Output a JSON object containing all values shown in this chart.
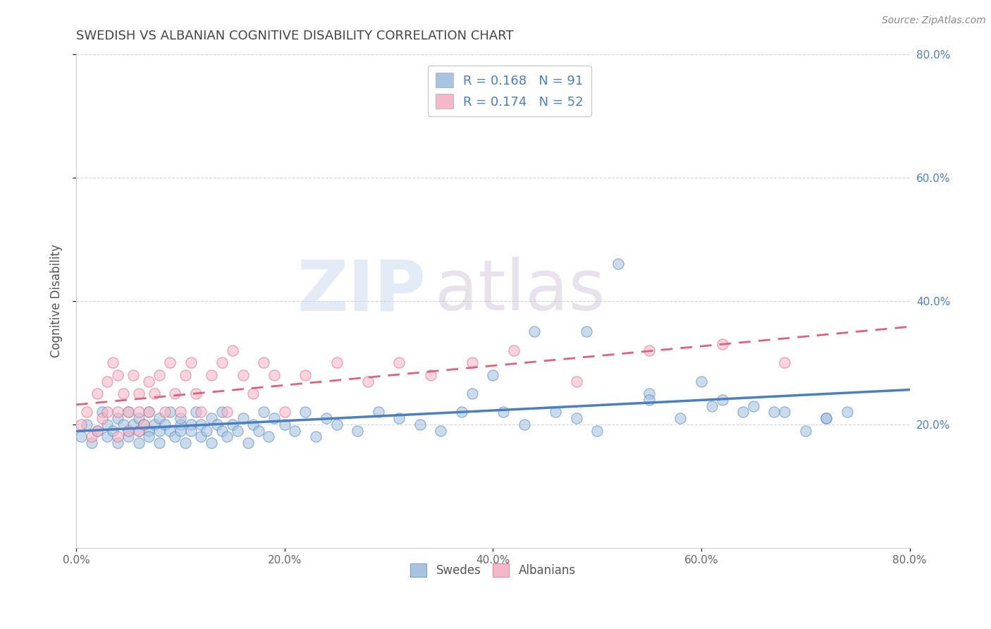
{
  "title": "SWEDISH VS ALBANIAN COGNITIVE DISABILITY CORRELATION CHART",
  "source": "Source: ZipAtlas.com",
  "ylabel": "Cognitive Disability",
  "xlim": [
    0.0,
    0.8
  ],
  "ylim": [
    0.0,
    0.8
  ],
  "xtick_labels": [
    "0.0%",
    "",
    "20.0%",
    "",
    "40.0%",
    "",
    "60.0%",
    "",
    "80.0%"
  ],
  "xtick_vals": [
    0.0,
    0.1,
    0.2,
    0.3,
    0.4,
    0.5,
    0.6,
    0.7,
    0.8
  ],
  "ytick_vals": [
    0.2,
    0.4,
    0.6,
    0.8
  ],
  "ytick_labels_right": [
    "20.0%",
    "40.0%",
    "60.0%",
    "80.0%"
  ],
  "swedes_color": "#a8c4e0",
  "albanians_color": "#f4b8c8",
  "swedes_line_color": "#4a7fc1",
  "albanians_line_color": "#e06080",
  "R_swedes": 0.168,
  "N_swedes": 91,
  "R_albanians": 0.174,
  "N_albanians": 52,
  "legend_label_swedes": "Swedes",
  "legend_label_albanians": "Albanians",
  "watermark_zip": "ZIP",
  "watermark_atlas": "atlas",
  "background_color": "#ffffff",
  "grid_color": "#cccccc",
  "title_color": "#444444",
  "swedes_x": [
    0.005,
    0.01,
    0.015,
    0.02,
    0.025,
    0.03,
    0.03,
    0.035,
    0.04,
    0.04,
    0.045,
    0.05,
    0.05,
    0.05,
    0.055,
    0.06,
    0.06,
    0.06,
    0.065,
    0.07,
    0.07,
    0.07,
    0.075,
    0.08,
    0.08,
    0.08,
    0.085,
    0.09,
    0.09,
    0.095,
    0.1,
    0.1,
    0.1,
    0.105,
    0.11,
    0.11,
    0.115,
    0.12,
    0.12,
    0.125,
    0.13,
    0.13,
    0.135,
    0.14,
    0.14,
    0.145,
    0.15,
    0.155,
    0.16,
    0.165,
    0.17,
    0.175,
    0.18,
    0.185,
    0.19,
    0.2,
    0.21,
    0.22,
    0.23,
    0.24,
    0.25,
    0.27,
    0.29,
    0.31,
    0.33,
    0.35,
    0.37,
    0.4,
    0.43,
    0.46,
    0.49,
    0.52,
    0.38,
    0.41,
    0.44,
    0.48,
    0.5,
    0.55,
    0.6,
    0.62,
    0.65,
    0.68,
    0.7,
    0.72,
    0.74,
    0.55,
    0.58,
    0.61,
    0.64,
    0.67,
    0.72
  ],
  "swedes_y": [
    0.18,
    0.2,
    0.17,
    0.19,
    0.22,
    0.18,
    0.2,
    0.19,
    0.21,
    0.17,
    0.2,
    0.19,
    0.22,
    0.18,
    0.2,
    0.19,
    0.21,
    0.17,
    0.2,
    0.19,
    0.22,
    0.18,
    0.2,
    0.19,
    0.21,
    0.17,
    0.2,
    0.19,
    0.22,
    0.18,
    0.2,
    0.19,
    0.21,
    0.17,
    0.2,
    0.19,
    0.22,
    0.18,
    0.2,
    0.19,
    0.21,
    0.17,
    0.2,
    0.19,
    0.22,
    0.18,
    0.2,
    0.19,
    0.21,
    0.17,
    0.2,
    0.19,
    0.22,
    0.18,
    0.21,
    0.2,
    0.19,
    0.22,
    0.18,
    0.21,
    0.2,
    0.19,
    0.22,
    0.21,
    0.2,
    0.19,
    0.22,
    0.28,
    0.2,
    0.22,
    0.35,
    0.46,
    0.25,
    0.22,
    0.35,
    0.21,
    0.19,
    0.25,
    0.27,
    0.24,
    0.23,
    0.22,
    0.19,
    0.21,
    0.22,
    0.24,
    0.21,
    0.23,
    0.22,
    0.22,
    0.21
  ],
  "albanians_x": [
    0.005,
    0.01,
    0.015,
    0.02,
    0.02,
    0.025,
    0.03,
    0.03,
    0.035,
    0.04,
    0.04,
    0.04,
    0.045,
    0.05,
    0.05,
    0.055,
    0.06,
    0.06,
    0.06,
    0.065,
    0.07,
    0.07,
    0.075,
    0.08,
    0.085,
    0.09,
    0.095,
    0.1,
    0.105,
    0.11,
    0.115,
    0.12,
    0.13,
    0.14,
    0.145,
    0.15,
    0.16,
    0.17,
    0.18,
    0.19,
    0.2,
    0.22,
    0.25,
    0.28,
    0.31,
    0.34,
    0.38,
    0.42,
    0.48,
    0.55,
    0.62,
    0.68
  ],
  "albanians_y": [
    0.2,
    0.22,
    0.18,
    0.25,
    0.19,
    0.21,
    0.27,
    0.22,
    0.3,
    0.22,
    0.28,
    0.18,
    0.25,
    0.22,
    0.19,
    0.28,
    0.25,
    0.19,
    0.22,
    0.2,
    0.27,
    0.22,
    0.25,
    0.28,
    0.22,
    0.3,
    0.25,
    0.22,
    0.28,
    0.3,
    0.25,
    0.22,
    0.28,
    0.3,
    0.22,
    0.32,
    0.28,
    0.25,
    0.3,
    0.28,
    0.22,
    0.28,
    0.3,
    0.27,
    0.3,
    0.28,
    0.3,
    0.32,
    0.27,
    0.32,
    0.33,
    0.3
  ]
}
